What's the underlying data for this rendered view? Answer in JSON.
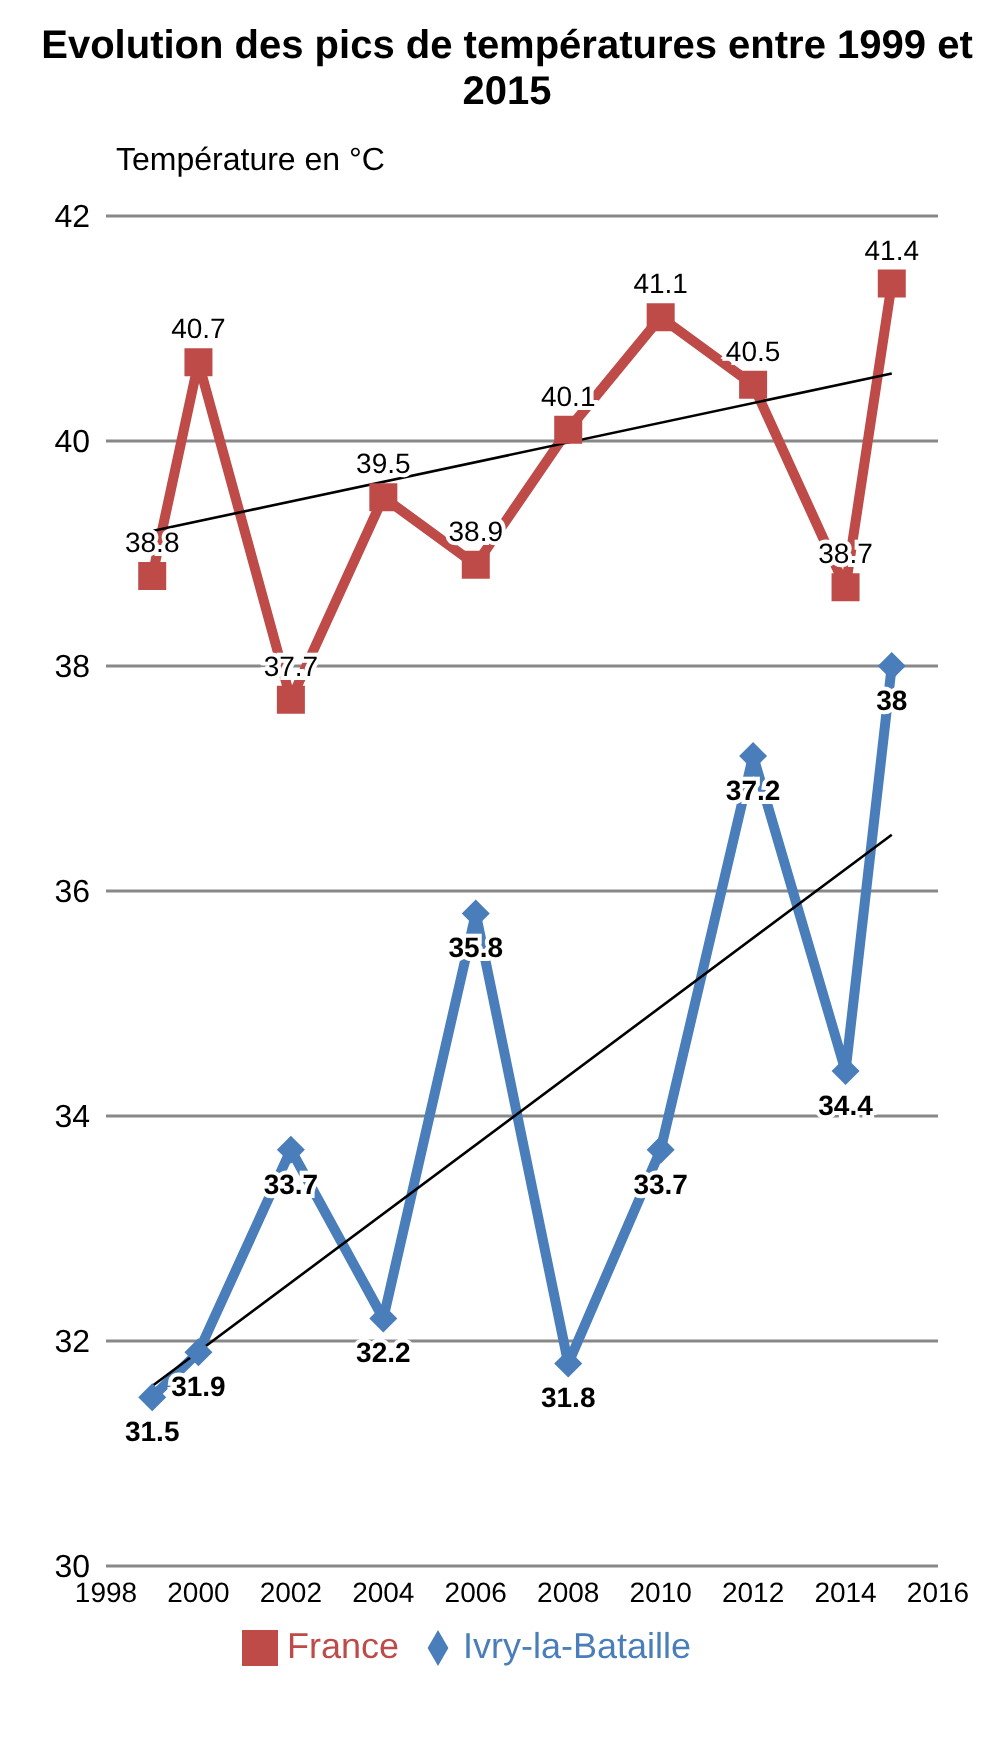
{
  "chart_data": {
    "type": "line",
    "title": "Evolution des pics de températures entre 1999 et 2015",
    "ylabel": "Température en °C",
    "xlim": [
      1998,
      2016
    ],
    "xticks": [
      1998,
      2000,
      2002,
      2004,
      2006,
      2008,
      2010,
      2012,
      2014,
      2016
    ],
    "ylim": [
      30,
      42
    ],
    "yticks": [
      30,
      32,
      34,
      36,
      38,
      40,
      42
    ],
    "grid": "y",
    "legend": "bottom",
    "series": [
      {
        "name": "Ivry-la-Bataille",
        "color": "#4a7ebb",
        "marker": "diamond",
        "data_labels": true,
        "x": [
          1999,
          2000,
          2002,
          2004,
          2006,
          2008,
          2010,
          2012,
          2014,
          2015
        ],
        "values": [
          31.5,
          31.9,
          33.7,
          32.2,
          35.8,
          31.8,
          33.7,
          37.2,
          34.4,
          38
        ]
      },
      {
        "name": "France",
        "color": "#be4b48",
        "marker": "square",
        "data_labels": true,
        "x": [
          1999,
          2000,
          2002,
          2004,
          2006,
          2008,
          2010,
          2012,
          2014,
          2015
        ],
        "values": [
          38.8,
          40.7,
          37.7,
          39.5,
          38.9,
          40.1,
          41.1,
          40.5,
          38.7,
          41.4
        ]
      },
      {
        "type": "line",
        "color": "#000000",
        "marker": "none",
        "x": [
          1999,
          2015
        ],
        "values": [
          31.6,
          36.5
        ]
      },
      {
        "type": "line",
        "color": "#000000",
        "marker": "none",
        "x": [
          1999,
          2015
        ],
        "values": [
          39.2,
          40.6
        ]
      }
    ]
  }
}
